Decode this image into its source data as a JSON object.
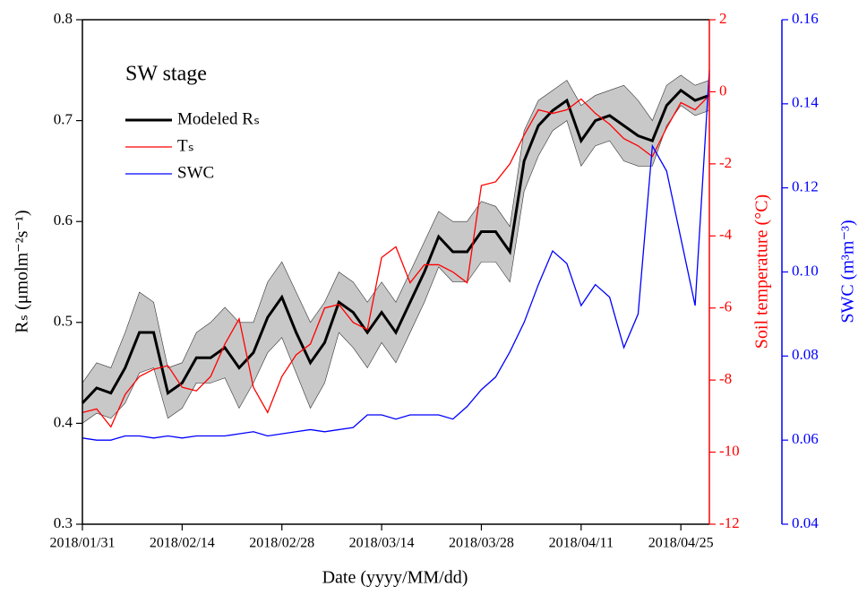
{
  "chart_data": {
    "type": "line",
    "x_label": "Date (yyyy/MM/dd)",
    "y_label": "Rₛ (μmolm⁻²s⁻¹)",
    "y2_label": "Soil temperature (°C)",
    "y3_label": "SWC (m³m⁻³)",
    "legend_title": "SW stage",
    "legend": "upper left",
    "xlim": [
      "2018/01/31",
      "2018/04/29"
    ],
    "xticks": [
      "2018/01/31",
      "2018/02/14",
      "2018/02/28",
      "2018/03/14",
      "2018/03/28",
      "2018/04/11",
      "2018/04/25"
    ],
    "ylim": [
      0.3,
      0.8
    ],
    "yticks": [
      0.3,
      0.4,
      0.5,
      0.6,
      0.7,
      0.8
    ],
    "y2lim": [
      -12,
      2
    ],
    "y2ticks": [
      -12,
      -10,
      -8,
      -6,
      -4,
      -2,
      0,
      2
    ],
    "y3lim": [
      0.04,
      0.16
    ],
    "y3ticks": [
      0.04,
      0.06,
      0.08,
      {
        "value": 0.1,
        "label": "0.10"
      },
      0.12,
      0.14,
      0.16
    ],
    "x": [
      "2018/01/31",
      "2018/02/02",
      "2018/02/04",
      "2018/02/06",
      "2018/02/08",
      "2018/02/10",
      "2018/02/12",
      "2018/02/14",
      "2018/02/16",
      "2018/02/18",
      "2018/02/20",
      "2018/02/22",
      "2018/02/24",
      "2018/02/26",
      "2018/02/28",
      "2018/03/02",
      "2018/03/04",
      "2018/03/06",
      "2018/03/08",
      "2018/03/10",
      "2018/03/12",
      "2018/03/14",
      "2018/03/16",
      "2018/03/18",
      "2018/03/20",
      "2018/03/22",
      "2018/03/24",
      "2018/03/26",
      "2018/03/28",
      "2018/03/30",
      "2018/04/01",
      "2018/04/03",
      "2018/04/05",
      "2018/04/07",
      "2018/04/09",
      "2018/04/11",
      "2018/04/13",
      "2018/04/15",
      "2018/04/17",
      "2018/04/19",
      "2018/04/21",
      "2018/04/23",
      "2018/04/25",
      "2018/04/27",
      "2018/04/29"
    ],
    "band": {
      "color": "#c8c8c8",
      "upper": [
        0.44,
        0.46,
        0.455,
        0.49,
        0.53,
        0.52,
        0.455,
        0.46,
        0.49,
        0.5,
        0.515,
        0.5,
        0.5,
        0.54,
        0.56,
        0.53,
        0.5,
        0.52,
        0.55,
        0.54,
        0.52,
        0.54,
        0.52,
        0.55,
        0.58,
        0.61,
        0.6,
        0.6,
        0.62,
        0.615,
        0.595,
        0.69,
        0.72,
        0.73,
        0.74,
        0.715,
        0.725,
        0.73,
        0.735,
        0.72,
        0.7,
        0.735,
        0.745,
        0.735,
        0.74
      ],
      "lower": [
        0.4,
        0.41,
        0.405,
        0.42,
        0.45,
        0.455,
        0.405,
        0.415,
        0.44,
        0.44,
        0.445,
        0.415,
        0.44,
        0.47,
        0.485,
        0.45,
        0.415,
        0.44,
        0.49,
        0.475,
        0.455,
        0.48,
        0.46,
        0.49,
        0.52,
        0.555,
        0.54,
        0.54,
        0.56,
        0.56,
        0.54,
        0.63,
        0.665,
        0.69,
        0.7,
        0.655,
        0.675,
        0.68,
        0.66,
        0.655,
        0.655,
        0.695,
        0.715,
        0.705,
        0.71
      ]
    },
    "series": [
      {
        "name": "Modeled Rₛ",
        "color": "#000000",
        "width": 3,
        "axis": "y",
        "values": [
          0.42,
          0.435,
          0.43,
          0.455,
          0.49,
          0.49,
          0.43,
          0.44,
          0.465,
          0.465,
          0.475,
          0.455,
          0.47,
          0.505,
          0.525,
          0.49,
          0.46,
          0.48,
          0.52,
          0.51,
          0.49,
          0.51,
          0.49,
          0.52,
          0.55,
          0.585,
          0.57,
          0.57,
          0.59,
          0.59,
          0.57,
          0.66,
          0.695,
          0.71,
          0.72,
          0.68,
          0.7,
          0.705,
          0.695,
          0.685,
          0.68,
          0.715,
          0.73,
          0.72,
          0.725
        ]
      },
      {
        "name": "Tₛ",
        "color": "#ff0000",
        "width": 1.3,
        "axis": "y2",
        "values": [
          -8.9,
          -8.8,
          -9.3,
          -8.4,
          -7.9,
          -7.7,
          -7.6,
          -8.2,
          -8.3,
          -7.9,
          -7.0,
          -6.3,
          -8.2,
          -8.9,
          -7.9,
          -7.3,
          -7.0,
          -6.0,
          -5.9,
          -6.4,
          -6.6,
          -4.6,
          -4.3,
          -5.3,
          -4.8,
          -4.8,
          -5.0,
          -5.3,
          -2.6,
          -2.5,
          -2.0,
          -1.2,
          -0.5,
          -0.6,
          -0.5,
          -0.2,
          -0.6,
          -0.9,
          -1.3,
          -1.5,
          -1.8,
          -1.0,
          -0.3,
          -0.5,
          -0.1
        ]
      },
      {
        "name": "SWC",
        "color": "#0000ff",
        "width": 1.3,
        "axis": "y3",
        "values": [
          0.0605,
          0.06,
          0.06,
          0.061,
          0.061,
          0.0605,
          0.061,
          0.0605,
          0.061,
          0.061,
          0.061,
          0.0615,
          0.062,
          0.061,
          0.0615,
          0.062,
          0.0625,
          0.062,
          0.0625,
          0.063,
          0.066,
          0.066,
          0.065,
          0.066,
          0.066,
          0.066,
          0.065,
          0.068,
          0.072,
          0.075,
          0.081,
          0.088,
          0.097,
          0.105,
          0.102,
          0.092,
          0.097,
          0.094,
          0.082,
          0.09,
          0.13,
          0.124,
          0.108,
          0.092,
          0.148
        ]
      }
    ]
  }
}
